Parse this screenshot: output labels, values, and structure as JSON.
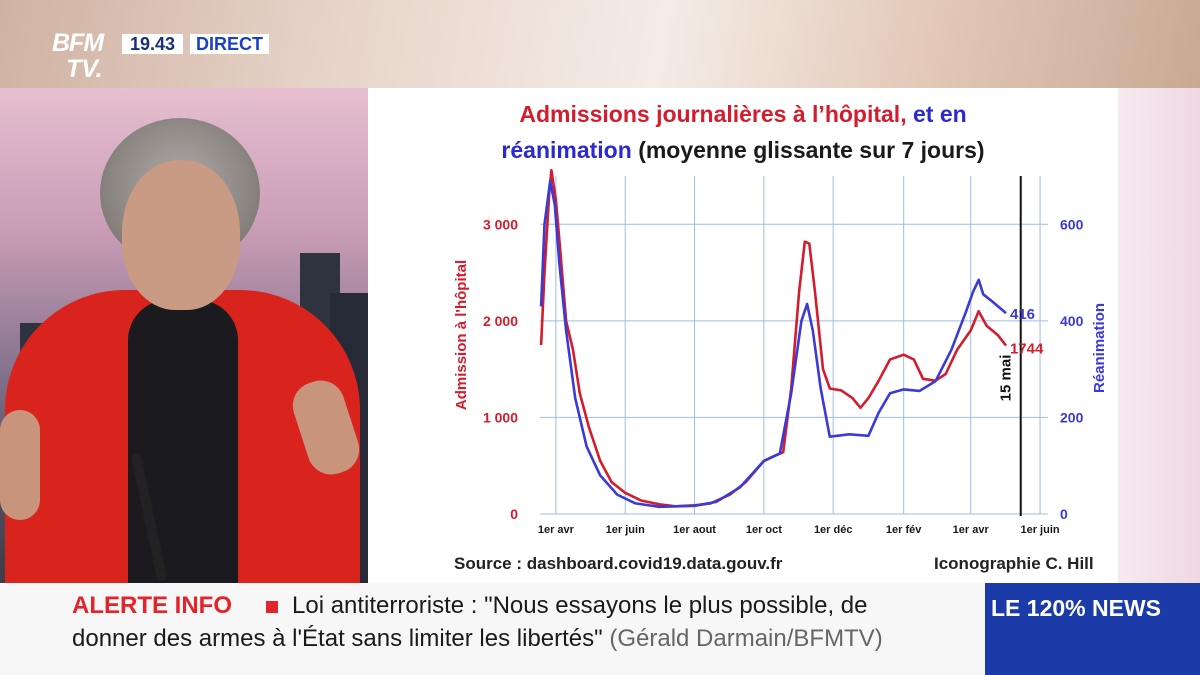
{
  "header": {
    "logo_top": "BFM",
    "logo_bottom": "TV.",
    "time": "19.43",
    "live": "DIRECT"
  },
  "chart_title": {
    "part_red": "Admissions journalières à l’hôpital,",
    "part_blue_1": "et en",
    "part_blue_2": "réanimation",
    "part_dark": "(moyenne glissante sur 7 jours)"
  },
  "source_text": "Source : dashboard.covid19.data.gouv.fr",
  "credit_text": "Iconographie C. Hill",
  "chart_data": {
    "type": "line",
    "title": "Admissions journalières à l’hôpital, et en réanimation (moyenne glissante sur 7 jours)",
    "xlabel": "",
    "ylabel": "Admission à l'hôpital",
    "y2label": "Réanimation",
    "x_ticks": [
      "1er avr",
      "1er juin",
      "1er aout",
      "1er oct",
      "1er déc",
      "1er fév",
      "1er avr",
      "1er juin"
    ],
    "x_tick_dates": [
      "2020-04-01",
      "2020-06-01",
      "2020-08-01",
      "2020-10-01",
      "2020-12-01",
      "2021-02-01",
      "2021-04-01",
      "2021-06-01"
    ],
    "x_range": [
      "2020-03-18",
      "2021-06-08"
    ],
    "ylim": [
      0,
      3500
    ],
    "y_ticks": [
      0,
      1000,
      2000,
      3000
    ],
    "y_tick_labels": [
      "0",
      "1 000",
      "2 000",
      "3 000"
    ],
    "y2lim": [
      0,
      700
    ],
    "y2_ticks": [
      0,
      200,
      400,
      600
    ],
    "grid": true,
    "marker_line": {
      "date": "2021-05-15",
      "label": "15 mai"
    },
    "series": [
      {
        "name": "Admission à l'hôpital",
        "axis": "left",
        "color": "#d41c2c",
        "end_label": "1744",
        "points": [
          [
            "2020-03-19",
            1750
          ],
          [
            "2020-03-22",
            2500
          ],
          [
            "2020-03-26",
            3300
          ],
          [
            "2020-03-28",
            3560
          ],
          [
            "2020-04-01",
            3250
          ],
          [
            "2020-04-05",
            2700
          ],
          [
            "2020-04-10",
            2000
          ],
          [
            "2020-04-16",
            1700
          ],
          [
            "2020-04-22",
            1250
          ],
          [
            "2020-04-30",
            900
          ],
          [
            "2020-05-10",
            550
          ],
          [
            "2020-05-20",
            330
          ],
          [
            "2020-06-01",
            220
          ],
          [
            "2020-06-15",
            140
          ],
          [
            "2020-07-01",
            100
          ],
          [
            "2020-07-15",
            80
          ],
          [
            "2020-08-01",
            90
          ],
          [
            "2020-08-15",
            110
          ],
          [
            "2020-09-01",
            200
          ],
          [
            "2020-09-15",
            330
          ],
          [
            "2020-10-01",
            550
          ],
          [
            "2020-10-10",
            600
          ],
          [
            "2020-10-18",
            640
          ],
          [
            "2020-10-25",
            1300
          ],
          [
            "2020-11-01",
            2300
          ],
          [
            "2020-11-06",
            2820
          ],
          [
            "2020-11-10",
            2800
          ],
          [
            "2020-11-15",
            2300
          ],
          [
            "2020-11-22",
            1500
          ],
          [
            "2020-11-28",
            1300
          ],
          [
            "2020-12-08",
            1280
          ],
          [
            "2020-12-18",
            1200
          ],
          [
            "2020-12-25",
            1100
          ],
          [
            "2021-01-01",
            1200
          ],
          [
            "2021-01-10",
            1380
          ],
          [
            "2021-01-20",
            1600
          ],
          [
            "2021-02-01",
            1650
          ],
          [
            "2021-02-10",
            1600
          ],
          [
            "2021-02-18",
            1400
          ],
          [
            "2021-03-01",
            1380
          ],
          [
            "2021-03-10",
            1450
          ],
          [
            "2021-03-20",
            1700
          ],
          [
            "2021-04-01",
            1900
          ],
          [
            "2021-04-08",
            2100
          ],
          [
            "2021-04-15",
            1950
          ],
          [
            "2021-04-25",
            1850
          ],
          [
            "2021-05-02",
            1744
          ]
        ]
      },
      {
        "name": "Réanimation",
        "axis": "right",
        "color": "#3a3ad8",
        "end_label": "416",
        "points": [
          [
            "2020-03-19",
            430
          ],
          [
            "2020-03-22",
            600
          ],
          [
            "2020-03-27",
            690
          ],
          [
            "2020-03-31",
            640
          ],
          [
            "2020-04-04",
            520
          ],
          [
            "2020-04-10",
            380
          ],
          [
            "2020-04-18",
            240
          ],
          [
            "2020-04-28",
            140
          ],
          [
            "2020-05-10",
            80
          ],
          [
            "2020-05-25",
            40
          ],
          [
            "2020-06-10",
            22
          ],
          [
            "2020-07-01",
            15
          ],
          [
            "2020-08-01",
            17
          ],
          [
            "2020-08-20",
            25
          ],
          [
            "2020-09-10",
            55
          ],
          [
            "2020-10-01",
            110
          ],
          [
            "2020-10-15",
            125
          ],
          [
            "2020-10-25",
            250
          ],
          [
            "2020-11-03",
            400
          ],
          [
            "2020-11-08",
            435
          ],
          [
            "2020-11-13",
            380
          ],
          [
            "2020-11-20",
            260
          ],
          [
            "2020-11-28",
            160
          ],
          [
            "2020-12-15",
            165
          ],
          [
            "2021-01-01",
            162
          ],
          [
            "2021-01-10",
            210
          ],
          [
            "2021-01-20",
            250
          ],
          [
            "2021-02-01",
            258
          ],
          [
            "2021-02-15",
            255
          ],
          [
            "2021-03-01",
            275
          ],
          [
            "2021-03-15",
            340
          ],
          [
            "2021-03-28",
            420
          ],
          [
            "2021-04-03",
            460
          ],
          [
            "2021-04-08",
            485
          ],
          [
            "2021-04-12",
            455
          ],
          [
            "2021-04-20",
            440
          ],
          [
            "2021-05-02",
            416
          ]
        ]
      }
    ]
  },
  "ticker": {
    "alert_label": "ALERTE INFO",
    "line1": "Loi antiterroriste : \"Nous essayons le plus possible, de",
    "line2": "donner des armes à l'État sans limiter les libertés\"",
    "credit": "(Gérald Darmain/BFMTV)"
  },
  "news_channel": "LE 120% NEWS",
  "colors": {
    "admissions": "#d41c2c",
    "reanimation": "#3a3ad8",
    "alert": "#e3242b",
    "news_box": "#1a3ba8"
  }
}
